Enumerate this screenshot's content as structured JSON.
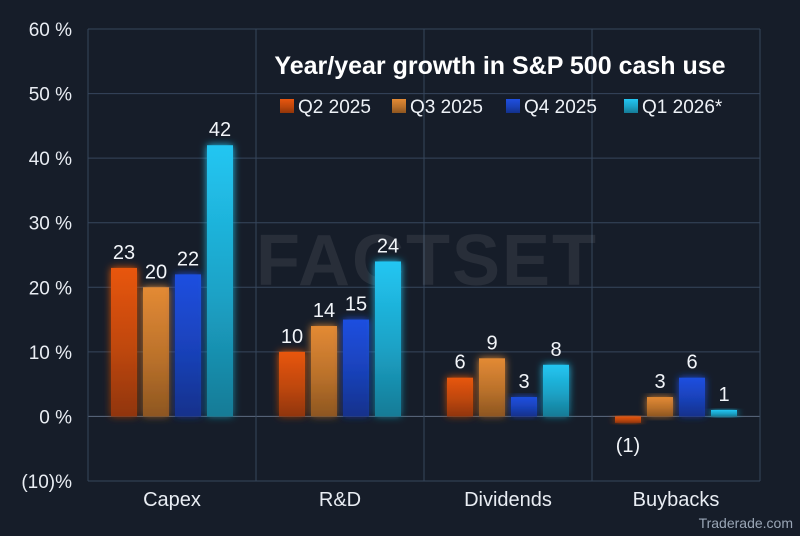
{
  "chart_data": {
    "type": "bar",
    "title": "Year/year growth in S&P 500 cash use",
    "categories": [
      "Capex",
      "R&D",
      "Dividends",
      "Buybacks"
    ],
    "series": [
      {
        "name": "Q2 2025",
        "values": [
          23,
          10,
          6,
          -1
        ],
        "labels": [
          "23",
          "10",
          "6",
          "(1)"
        ],
        "color": "#e8560f"
      },
      {
        "name": "Q3 2025",
        "values": [
          20,
          14,
          9,
          3
        ],
        "labels": [
          "20",
          "14",
          "9",
          "3"
        ],
        "color": "#e38a34"
      },
      {
        "name": "Q4 2025",
        "values": [
          22,
          15,
          3,
          6
        ],
        "labels": [
          "22",
          "15",
          "3",
          "6"
        ],
        "color": "#1f4fe0"
      },
      {
        "name": "Q1 2026*",
        "values": [
          42,
          24,
          8,
          1
        ],
        "labels": [
          "42",
          "24",
          "8",
          "1"
        ],
        "color": "#22c6f2"
      }
    ],
    "yticks": [
      {
        "value": 60,
        "label": "60 %"
      },
      {
        "value": 50,
        "label": "50 %"
      },
      {
        "value": 40,
        "label": "40 %"
      },
      {
        "value": 30,
        "label": "30 %"
      },
      {
        "value": 20,
        "label": "20 %"
      },
      {
        "value": 10,
        "label": "10 %"
      },
      {
        "value": 0,
        "label": "0 %"
      },
      {
        "value": -10,
        "label": "(10)%"
      }
    ],
    "ylim": [
      -10,
      60
    ],
    "xlabel": "",
    "ylabel": "",
    "grid": true,
    "legend_position": "top-right"
  },
  "watermark": "FACTSET",
  "credit": "Traderade.com"
}
